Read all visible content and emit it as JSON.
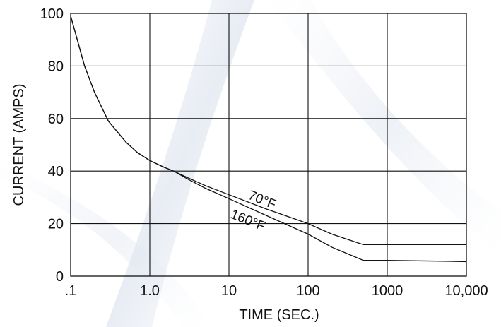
{
  "chart_data": {
    "type": "line",
    "xscale": "log",
    "xlabel": "TIME (SEC.)",
    "ylabel": "CURRENT (AMPS)",
    "xlim": [
      0.1,
      10000
    ],
    "ylim": [
      0,
      100
    ],
    "grid": true,
    "x_tick_labels": [
      ".1",
      "1.0",
      "10",
      "100",
      "1000",
      "10,000"
    ],
    "y_tick_labels": [
      "0",
      "20",
      "40",
      "60",
      "80",
      "100"
    ],
    "annotations": [
      "70°F",
      "160°F"
    ],
    "series": [
      {
        "name": "70°F",
        "x": [
          0.1,
          0.15,
          0.2,
          0.3,
          0.5,
          0.7,
          1.0,
          1.5,
          2.0,
          3.0,
          5.0,
          10,
          30,
          100,
          200,
          500,
          1000,
          5000,
          10000
        ],
        "y": [
          99,
          80,
          70,
          59,
          51,
          47,
          44,
          41.5,
          40,
          37.5,
          34.5,
          31,
          25.5,
          20,
          16,
          12,
          12,
          12,
          12
        ]
      },
      {
        "name": "160°F",
        "x": [
          0.1,
          0.15,
          0.2,
          0.3,
          0.5,
          0.7,
          1.0,
          1.5,
          2.0,
          3.0,
          5.0,
          10,
          30,
          100,
          200,
          500,
          1000,
          5000,
          10000
        ],
        "y": [
          99,
          80,
          70,
          59,
          51,
          47,
          44,
          41.5,
          40,
          37,
          33.5,
          29.5,
          23,
          16,
          11,
          6,
          6,
          5.7,
          5.5
        ]
      }
    ]
  }
}
